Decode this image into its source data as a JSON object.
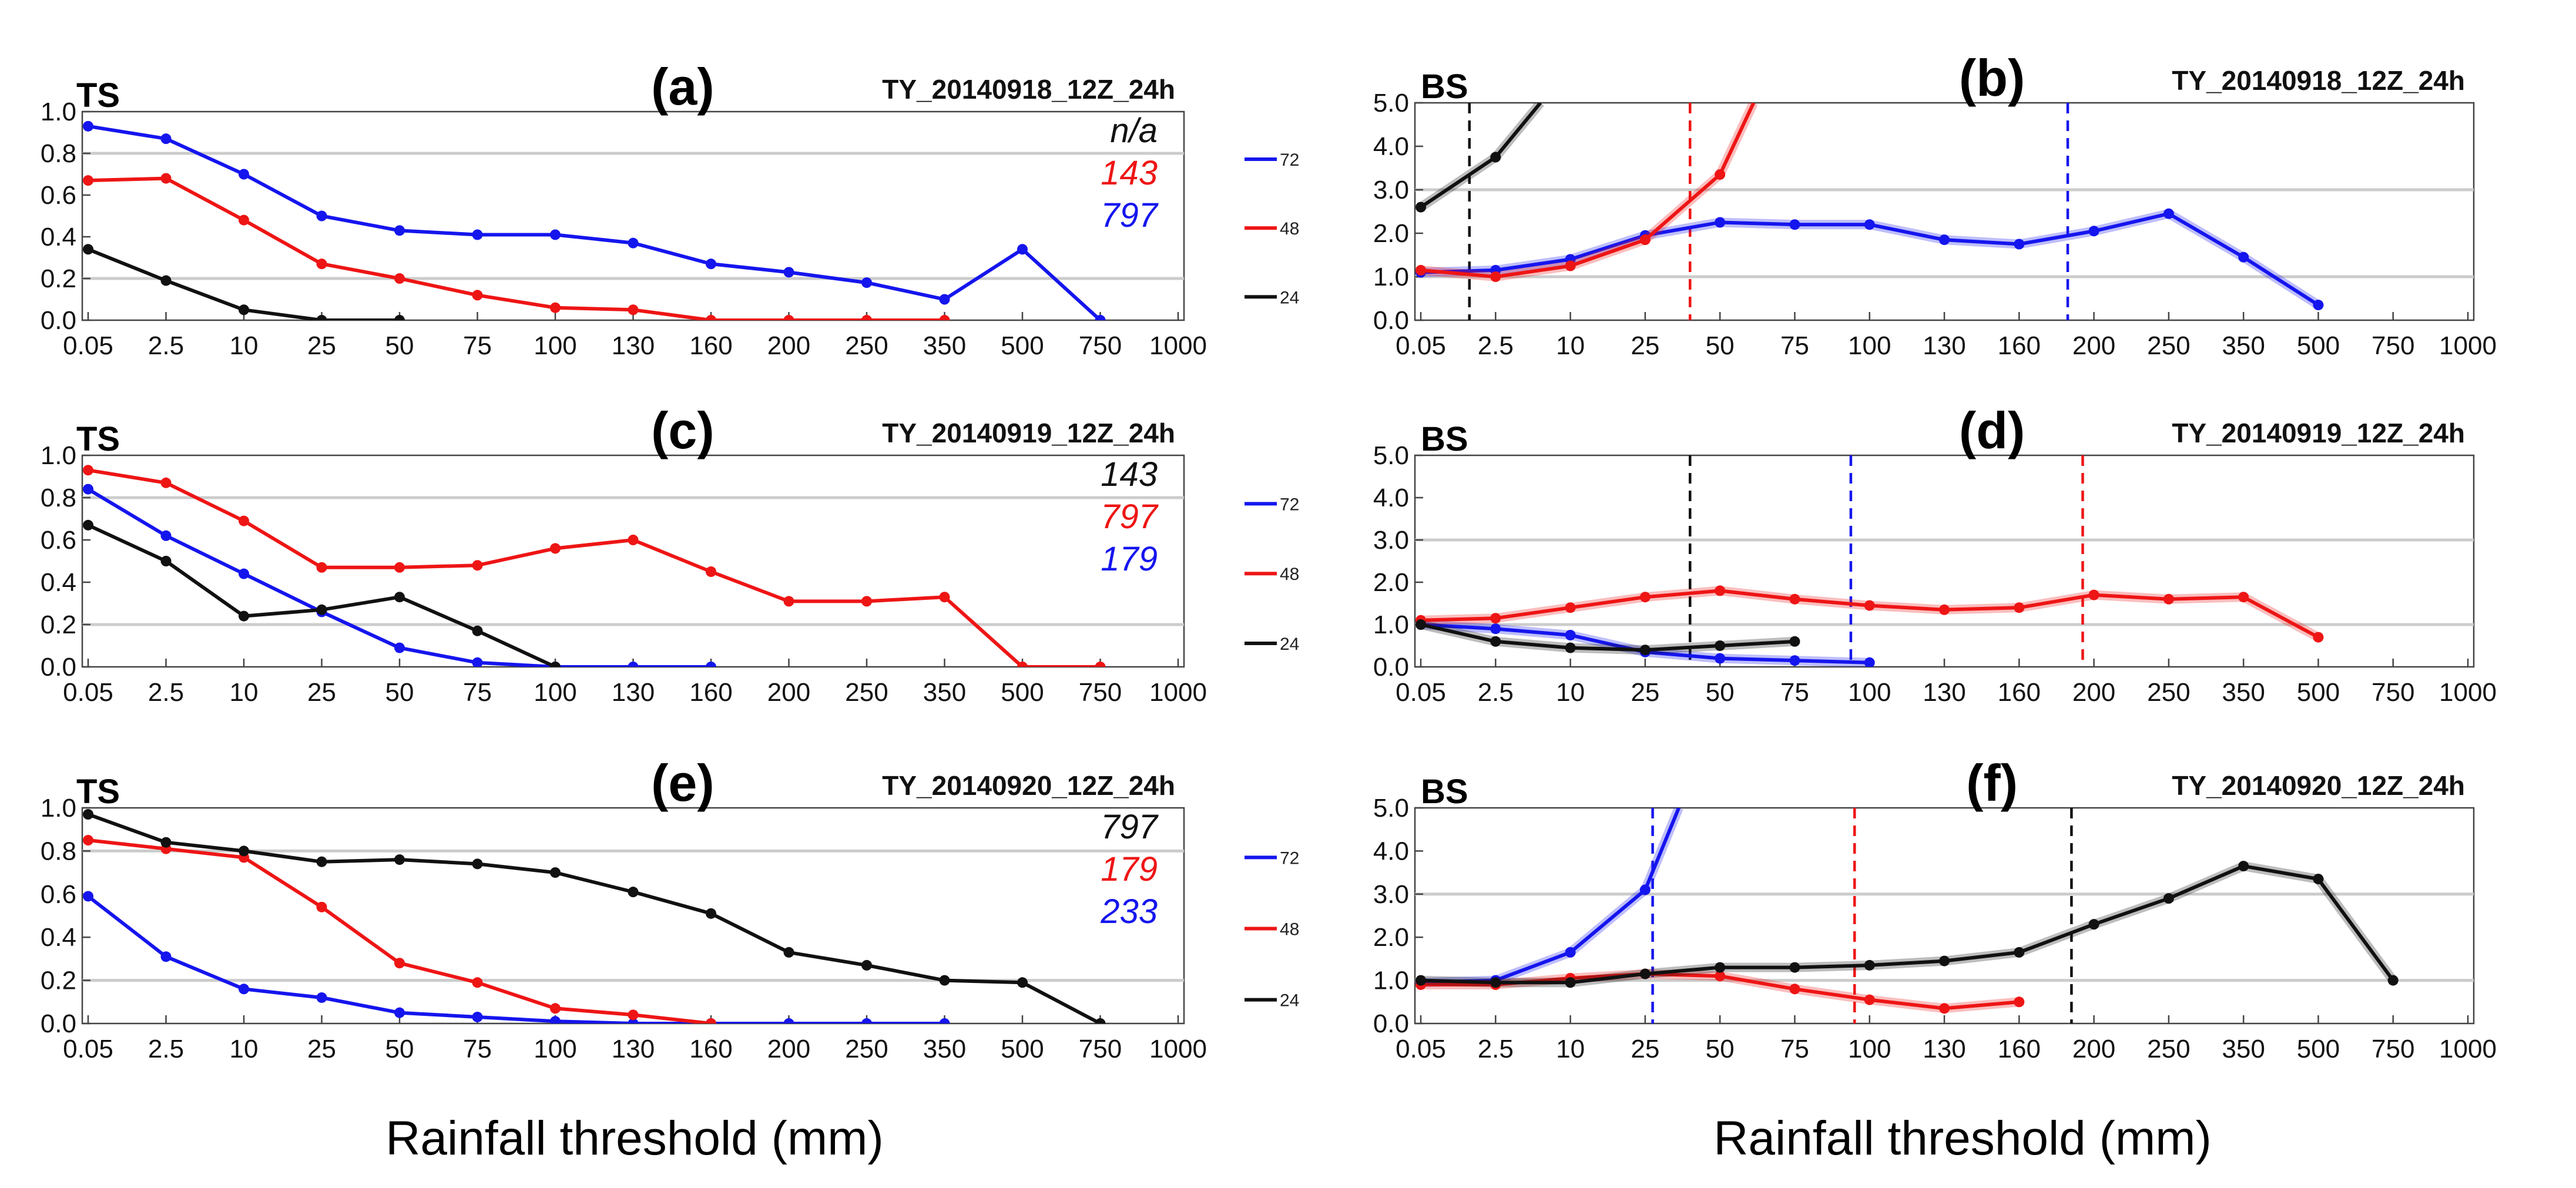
{
  "colors": {
    "72": "#1515ee",
    "48": "#ee1515",
    "24": "#111111"
  },
  "xlabels": [
    "Rainfall threshold (mm)",
    "Rainfall threshold (mm)"
  ],
  "chart_data": [
    {
      "type": "line",
      "panel_label": "(a)",
      "metric": "TS",
      "title": "TY_20140918_12Z_24h",
      "categories": [
        "0.05",
        "2.5",
        "10",
        "25",
        "50",
        "75",
        "100",
        "130",
        "160",
        "200",
        "250",
        "350",
        "500",
        "750",
        "1000"
      ],
      "ylim": [
        0,
        1.0
      ],
      "yticks": [
        0,
        0.2,
        0.4,
        0.6,
        0.8,
        1.0
      ],
      "ytick_labels": [
        "0.0",
        "0.2",
        "0.4",
        "0.6",
        "0.8",
        "1.0"
      ],
      "grid_y": [
        0.2,
        0.8
      ],
      "legend": [
        "72",
        "48",
        "24"
      ],
      "annotations": [
        {
          "text": "n/a",
          "series": "24"
        },
        {
          "text": "143",
          "series": "48"
        },
        {
          "text": "797",
          "series": "72"
        }
      ],
      "ref_lines": [],
      "series": [
        {
          "name": "72",
          "values": [
            0.93,
            0.87,
            0.7,
            0.5,
            0.43,
            0.41,
            0.41,
            0.37,
            0.27,
            0.23,
            0.18,
            0.1,
            0.34,
            0.0,
            null
          ]
        },
        {
          "name": "48",
          "values": [
            0.67,
            0.68,
            0.48,
            0.27,
            0.2,
            0.12,
            0.06,
            0.05,
            0.0,
            0.0,
            0.0,
            0.0,
            null,
            null,
            null
          ]
        },
        {
          "name": "24",
          "values": [
            0.34,
            0.19,
            0.05,
            0.0,
            0.0,
            null,
            null,
            null,
            null,
            null,
            null,
            null,
            null,
            null,
            null
          ]
        }
      ]
    },
    {
      "type": "line",
      "panel_label": "(b)",
      "metric": "BS",
      "title": "TY_20140918_12Z_24h",
      "categories": [
        "0.05",
        "2.5",
        "10",
        "25",
        "50",
        "75",
        "100",
        "130",
        "160",
        "200",
        "250",
        "350",
        "500",
        "750",
        "1000"
      ],
      "ylim": [
        0,
        5.0
      ],
      "yticks": [
        0,
        1,
        2,
        3,
        4,
        5
      ],
      "ytick_labels": [
        "0.0",
        "1.0",
        "2.0",
        "3.0",
        "4.0",
        "5.0"
      ],
      "grid_y": [
        1.0,
        3.0
      ],
      "legend": [],
      "annotations": [],
      "ref_lines": [
        {
          "series": "24",
          "x_index": 0.65
        },
        {
          "series": "48",
          "x_index": 3.6
        },
        {
          "series": "72",
          "x_index": 8.65
        }
      ],
      "series": [
        {
          "name": "72",
          "values": [
            1.1,
            1.15,
            1.4,
            1.95,
            2.25,
            2.2,
            2.2,
            1.85,
            1.75,
            2.05,
            2.45,
            1.45,
            0.35,
            null,
            null
          ]
        },
        {
          "name": "48",
          "values": [
            1.15,
            1.0,
            1.25,
            1.85,
            3.35,
            null,
            null,
            null,
            null,
            null,
            null,
            null,
            null,
            null,
            null
          ],
          "extend_to": [
            4.45,
            5.0
          ]
        },
        {
          "name": "24",
          "values": [
            2.6,
            3.75,
            null,
            null,
            null,
            null,
            null,
            null,
            null,
            null,
            null,
            null,
            null,
            null,
            null
          ],
          "extend_to": [
            1.6,
            5.0
          ]
        }
      ]
    },
    {
      "type": "line",
      "panel_label": "(c)",
      "metric": "TS",
      "title": "TY_20140919_12Z_24h",
      "categories": [
        "0.05",
        "2.5",
        "10",
        "25",
        "50",
        "75",
        "100",
        "130",
        "160",
        "200",
        "250",
        "350",
        "500",
        "750",
        "1000"
      ],
      "ylim": [
        0,
        1.0
      ],
      "yticks": [
        0,
        0.2,
        0.4,
        0.6,
        0.8,
        1.0
      ],
      "ytick_labels": [
        "0.0",
        "0.2",
        "0.4",
        "0.6",
        "0.8",
        "1.0"
      ],
      "grid_y": [
        0.2,
        0.8
      ],
      "legend": [
        "72",
        "48",
        "24"
      ],
      "annotations": [
        {
          "text": "143",
          "series": "24"
        },
        {
          "text": "797",
          "series": "48"
        },
        {
          "text": "179",
          "series": "72"
        }
      ],
      "ref_lines": [],
      "series": [
        {
          "name": "72",
          "values": [
            0.84,
            0.62,
            0.44,
            0.26,
            0.09,
            0.02,
            0.0,
            0.0,
            0.0,
            null,
            null,
            null,
            null,
            null,
            null
          ]
        },
        {
          "name": "48",
          "values": [
            0.93,
            0.87,
            0.69,
            0.47,
            0.47,
            0.48,
            0.56,
            0.6,
            0.45,
            0.31,
            0.31,
            0.33,
            0.0,
            0.0,
            null
          ]
        },
        {
          "name": "24",
          "values": [
            0.67,
            0.5,
            0.24,
            0.27,
            0.33,
            0.17,
            0.0,
            null,
            null,
            null,
            null,
            null,
            null,
            null,
            null
          ]
        }
      ]
    },
    {
      "type": "line",
      "panel_label": "(d)",
      "metric": "BS",
      "title": "TY_20140919_12Z_24h",
      "categories": [
        "0.05",
        "2.5",
        "10",
        "25",
        "50",
        "75",
        "100",
        "130",
        "160",
        "200",
        "250",
        "350",
        "500",
        "750",
        "1000"
      ],
      "ylim": [
        0,
        5.0
      ],
      "yticks": [
        0,
        1,
        2,
        3,
        4,
        5
      ],
      "ytick_labels": [
        "0.0",
        "1.0",
        "2.0",
        "3.0",
        "4.0",
        "5.0"
      ],
      "grid_y": [
        1.0,
        3.0
      ],
      "legend": [],
      "annotations": [],
      "ref_lines": [
        {
          "series": "24",
          "x_index": 3.6
        },
        {
          "series": "72",
          "x_index": 5.75
        },
        {
          "series": "48",
          "x_index": 8.85
        }
      ],
      "series": [
        {
          "name": "72",
          "values": [
            1.0,
            0.9,
            0.75,
            0.35,
            0.2,
            0.15,
            0.1,
            null,
            null,
            null,
            null,
            null,
            null,
            null,
            null
          ]
        },
        {
          "name": "48",
          "values": [
            1.1,
            1.15,
            1.4,
            1.65,
            1.8,
            1.6,
            1.45,
            1.35,
            1.4,
            1.7,
            1.6,
            1.65,
            0.7,
            null,
            null
          ]
        },
        {
          "name": "24",
          "values": [
            1.0,
            0.6,
            0.45,
            0.4,
            0.5,
            0.6,
            null,
            null,
            null,
            null,
            null,
            null,
            null,
            null,
            null
          ]
        }
      ]
    },
    {
      "type": "line",
      "panel_label": "(e)",
      "metric": "TS",
      "title": "TY_20140920_12Z_24h",
      "categories": [
        "0.05",
        "2.5",
        "10",
        "25",
        "50",
        "75",
        "100",
        "130",
        "160",
        "200",
        "250",
        "350",
        "500",
        "750",
        "1000"
      ],
      "ylim": [
        0,
        1.0
      ],
      "yticks": [
        0,
        0.2,
        0.4,
        0.6,
        0.8,
        1.0
      ],
      "ytick_labels": [
        "0.0",
        "0.2",
        "0.4",
        "0.6",
        "0.8",
        "1.0"
      ],
      "grid_y": [
        0.2,
        0.8
      ],
      "legend": [
        "72",
        "48",
        "24"
      ],
      "annotations": [
        {
          "text": "797",
          "series": "24"
        },
        {
          "text": "179",
          "series": "48"
        },
        {
          "text": "233",
          "series": "72"
        }
      ],
      "ref_lines": [],
      "series": [
        {
          "name": "72",
          "values": [
            0.59,
            0.31,
            0.16,
            0.12,
            0.05,
            0.03,
            0.01,
            0.0,
            0.0,
            0.0,
            0.0,
            0.0,
            null,
            null,
            null
          ]
        },
        {
          "name": "48",
          "values": [
            0.85,
            0.81,
            0.77,
            0.54,
            0.28,
            0.19,
            0.07,
            0.04,
            0.0,
            null,
            null,
            null,
            null,
            null,
            null
          ]
        },
        {
          "name": "24",
          "values": [
            0.97,
            0.84,
            0.8,
            0.75,
            0.76,
            0.74,
            0.7,
            0.61,
            0.51,
            0.33,
            0.27,
            0.2,
            0.19,
            0.0,
            null
          ]
        }
      ]
    },
    {
      "type": "line",
      "panel_label": "(f)",
      "metric": "BS",
      "title": "TY_20140920_12Z_24h",
      "categories": [
        "0.05",
        "2.5",
        "10",
        "25",
        "50",
        "75",
        "100",
        "130",
        "160",
        "200",
        "250",
        "350",
        "500",
        "750",
        "1000"
      ],
      "ylim": [
        0,
        5.0
      ],
      "yticks": [
        0,
        1,
        2,
        3,
        4,
        5
      ],
      "ytick_labels": [
        "0.0",
        "1.0",
        "2.0",
        "3.0",
        "4.0",
        "5.0"
      ],
      "grid_y": [
        1.0,
        3.0
      ],
      "legend": [],
      "annotations": [],
      "ref_lines": [
        {
          "series": "72",
          "x_index": 3.1
        },
        {
          "series": "48",
          "x_index": 5.8
        },
        {
          "series": "24",
          "x_index": 8.7
        }
      ],
      "series": [
        {
          "name": "72",
          "values": [
            0.95,
            1.0,
            1.65,
            3.1,
            null,
            null,
            null,
            null,
            null,
            null,
            null,
            null,
            null,
            null,
            null
          ],
          "extend_to": [
            3.45,
            5.0
          ]
        },
        {
          "name": "48",
          "values": [
            0.9,
            0.9,
            1.05,
            1.15,
            1.1,
            0.8,
            0.55,
            0.35,
            0.5,
            null,
            null,
            null,
            null,
            null,
            null
          ]
        },
        {
          "name": "24",
          "values": [
            1.0,
            0.95,
            0.95,
            1.15,
            1.3,
            1.3,
            1.35,
            1.45,
            1.65,
            2.3,
            2.9,
            3.65,
            3.35,
            1.0,
            null
          ]
        }
      ]
    }
  ]
}
